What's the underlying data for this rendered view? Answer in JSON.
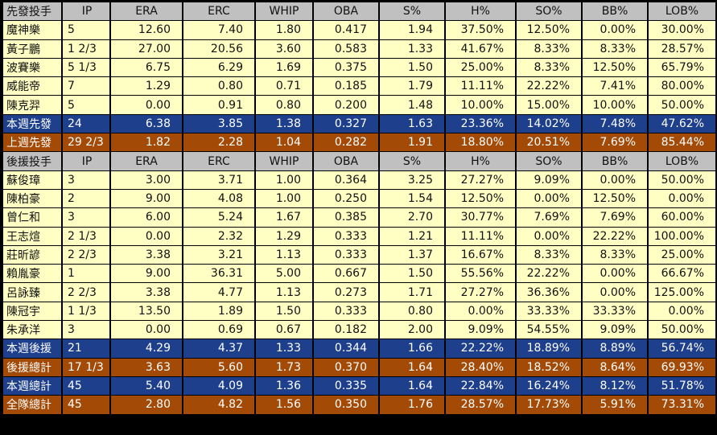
{
  "sections": [
    {
      "header": [
        "先發投手",
        "IP",
        "ERA",
        "ERC",
        "WHIP",
        "OBA",
        "S%",
        "H%",
        "SO%",
        "BB%",
        "LOB%"
      ],
      "rows": [
        {
          "style": "row",
          "cells": [
            "魔神樂",
            "5",
            "12.60",
            "7.40",
            "1.80",
            "0.417",
            "1.94",
            "37.50%",
            "12.50%",
            "0.00%",
            "30.00%"
          ]
        },
        {
          "style": "row",
          "cells": [
            "黃子鵬",
            "1 2/3",
            "27.00",
            "20.56",
            "3.60",
            "0.583",
            "1.33",
            "41.67%",
            "8.33%",
            "8.33%",
            "28.57%"
          ]
        },
        {
          "style": "row",
          "cells": [
            "波賽樂",
            "5 1/3",
            "6.75",
            "6.29",
            "1.69",
            "0.375",
            "1.50",
            "25.00%",
            "8.33%",
            "12.50%",
            "65.79%"
          ]
        },
        {
          "style": "row",
          "cells": [
            "威能帝",
            "7",
            "1.29",
            "0.80",
            "0.71",
            "0.185",
            "1.79",
            "11.11%",
            "22.22%",
            "7.41%",
            "80.00%"
          ]
        },
        {
          "style": "row",
          "cells": [
            "陳克羿",
            "5",
            "0.00",
            "0.91",
            "0.80",
            "0.200",
            "1.48",
            "10.00%",
            "15.00%",
            "10.00%",
            "50.00%"
          ]
        },
        {
          "style": "blue",
          "cells": [
            "本週先發",
            "24",
            "6.38",
            "3.85",
            "1.38",
            "0.327",
            "1.63",
            "23.36%",
            "14.02%",
            "7.48%",
            "47.62%"
          ]
        },
        {
          "style": "orange",
          "cells": [
            "上週先發",
            "29 2/3",
            "1.82",
            "2.28",
            "1.04",
            "0.282",
            "1.91",
            "18.80%",
            "20.51%",
            "7.69%",
            "85.44%"
          ]
        }
      ]
    },
    {
      "header": [
        "後援投手",
        "IP",
        "ERA",
        "ERC",
        "WHIP",
        "OBA",
        "S%",
        "H%",
        "SO%",
        "BB%",
        "LOB%"
      ],
      "rows": [
        {
          "style": "row",
          "cells": [
            "蘇俊璋",
            "3",
            "3.00",
            "3.71",
            "1.00",
            "0.364",
            "3.25",
            "27.27%",
            "9.09%",
            "0.00%",
            "50.00%"
          ]
        },
        {
          "style": "row",
          "cells": [
            "陳柏豪",
            "2",
            "9.00",
            "4.08",
            "1.00",
            "0.250",
            "1.54",
            "12.50%",
            "0.00%",
            "12.50%",
            "0.00%"
          ]
        },
        {
          "style": "row",
          "cells": [
            "曾仁和",
            "3",
            "6.00",
            "5.24",
            "1.67",
            "0.385",
            "2.70",
            "30.77%",
            "7.69%",
            "7.69%",
            "60.00%"
          ]
        },
        {
          "style": "row",
          "cells": [
            "王志煊",
            "2 1/3",
            "0.00",
            "2.32",
            "1.29",
            "0.333",
            "1.21",
            "11.11%",
            "0.00%",
            "22.22%",
            "100.00%"
          ]
        },
        {
          "style": "row",
          "cells": [
            "莊昕諺",
            "2 2/3",
            "3.38",
            "3.21",
            "1.13",
            "0.333",
            "1.37",
            "16.67%",
            "8.33%",
            "8.33%",
            "25.00%"
          ]
        },
        {
          "style": "row",
          "cells": [
            "賴胤豪",
            "1",
            "9.00",
            "36.31",
            "5.00",
            "0.667",
            "1.50",
            "55.56%",
            "22.22%",
            "0.00%",
            "66.67%"
          ]
        },
        {
          "style": "row",
          "cells": [
            "呂詠臻",
            "2 2/3",
            "3.38",
            "4.77",
            "1.13",
            "0.273",
            "1.71",
            "27.27%",
            "36.36%",
            "0.00%",
            "125.00%"
          ]
        },
        {
          "style": "row",
          "cells": [
            "陳冠宇",
            "1 1/3",
            "13.50",
            "1.89",
            "1.50",
            "0.333",
            "0.80",
            "0.00%",
            "33.33%",
            "33.33%",
            "0.00%"
          ]
        },
        {
          "style": "row",
          "cells": [
            "朱承洋",
            "3",
            "0.00",
            "0.69",
            "0.67",
            "0.182",
            "2.00",
            "9.09%",
            "54.55%",
            "9.09%",
            "50.00%"
          ]
        },
        {
          "style": "blue",
          "cells": [
            "本週後援",
            "21",
            "4.29",
            "4.37",
            "1.33",
            "0.344",
            "1.66",
            "22.22%",
            "18.89%",
            "8.89%",
            "56.74%"
          ]
        },
        {
          "style": "orange",
          "cells": [
            "後援總計",
            "17 1/3",
            "3.63",
            "5.60",
            "1.73",
            "0.370",
            "1.64",
            "28.40%",
            "18.52%",
            "8.64%",
            "69.93%"
          ]
        },
        {
          "style": "blue",
          "cells": [
            "本週總計",
            "45",
            "5.40",
            "4.09",
            "1.36",
            "0.335",
            "1.64",
            "22.84%",
            "16.24%",
            "8.12%",
            "51.78%"
          ]
        },
        {
          "style": "orange",
          "cells": [
            "全隊總計",
            "45",
            "2.80",
            "4.82",
            "1.56",
            "0.350",
            "1.76",
            "28.57%",
            "17.73%",
            "5.91%",
            "73.31%"
          ]
        }
      ]
    }
  ],
  "colors": {
    "header_bg": "#c0c0c0",
    "row_bg": "#ffffc4",
    "blue_bg": "#1d3f8c",
    "orange_bg": "#a34a06",
    "border": "#000000"
  }
}
